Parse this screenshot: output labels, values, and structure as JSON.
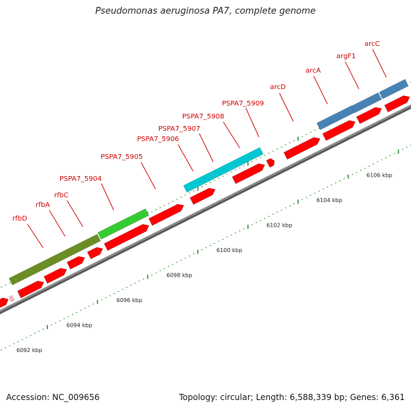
{
  "title": "Pseudomonas aeruginosa PA7, complete genome",
  "footer": {
    "accession": "Accession: NC_009656",
    "topology": "Topology: circular; Length: 6,588,339 bp; Genes: 6,361"
  },
  "colors": {
    "cds_arrow": "#ff0000",
    "backbone": "#8c8c8c",
    "label": "#cc0000",
    "tick": "#2e8b2e",
    "olive_block": "#6b8e23",
    "green_block": "#33cc33",
    "cyan_block": "#00c8d2",
    "steelblue_block": "#4682b4",
    "pink_feature": "#ffb6c1"
  },
  "scale_labels": [
    "6092 kbp",
    "6094 kbp",
    "6096 kbp",
    "6098 kbp",
    "6100 kbp",
    "6102 kbp",
    "6104 kbp",
    "6106 kbp"
  ],
  "scale_kbp": [
    6092,
    6094,
    6096,
    6098,
    6100,
    6102,
    6104,
    6106
  ],
  "gene_labels": [
    "rfbD",
    "rfbA",
    "rfbC",
    "PSPA7_5904",
    "PSPA7_5905",
    "PSPA7_5906",
    "PSPA7_5907",
    "PSPA7_5908",
    "PSPA7_5909",
    "arcD",
    "arcA",
    "argF1",
    "arcC"
  ]
}
